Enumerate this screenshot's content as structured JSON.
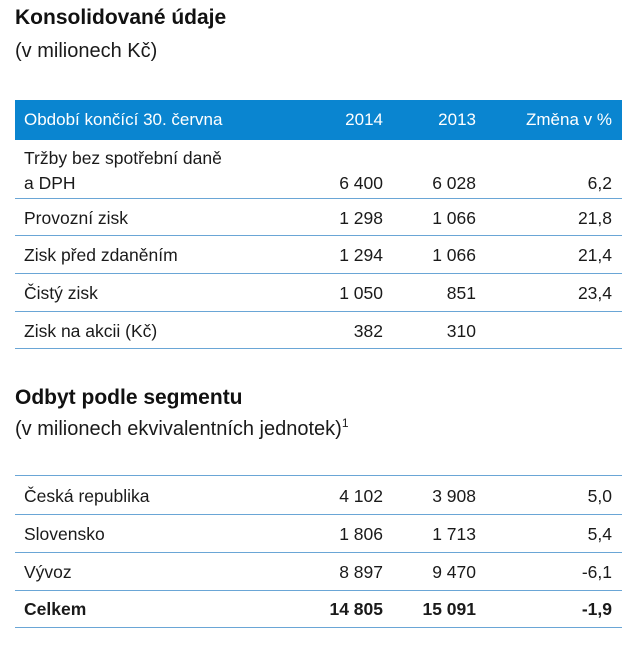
{
  "section1": {
    "title": "Konsolidované údaje",
    "subtitle": "(v milionech Kč)",
    "header": {
      "label": "Období končící 30. června",
      "y2014": "2014",
      "y2013": "2013",
      "change": "Změna v %"
    },
    "rows": [
      {
        "label_line1": "Tržby bez spotřební daně",
        "label_line2": "a DPH",
        "y2014": "6 400",
        "y2013": "6 028",
        "change": "6,2"
      },
      {
        "label": "Provozní zisk",
        "y2014": "1 298",
        "y2013": "1 066",
        "change": "21,8"
      },
      {
        "label": "Zisk před zdaněním",
        "y2014": "1 294",
        "y2013": "1 066",
        "change": "21,4"
      },
      {
        "label": "Čistý zisk",
        "y2014": "1 050",
        "y2013": "851",
        "change": "23,4"
      },
      {
        "label": "Zisk na akcii (Kč)",
        "y2014": "382",
        "y2013": "310",
        "change": ""
      }
    ]
  },
  "section2": {
    "title": "Odbyt podle segmentu",
    "subtitle": "(v milionech ekvivalentních jednotek)",
    "footnote_mark": "1",
    "rows": [
      {
        "label": "Česká republika",
        "y2014": "4 102",
        "y2013": "3 908",
        "change": "5,0"
      },
      {
        "label": "Slovensko",
        "y2014": "1 806",
        "y2013": "1 713",
        "change": "5,4"
      },
      {
        "label": "Vývoz",
        "y2014": "8 897",
        "y2013": "9 470",
        "change": "-6,1"
      },
      {
        "label": "Celkem",
        "y2014": "14 805",
        "y2013": "15 091",
        "change": "-1,9"
      }
    ]
  }
}
